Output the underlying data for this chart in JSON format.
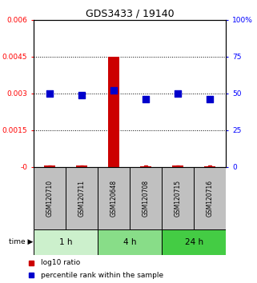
{
  "title": "GDS3433 / 19140",
  "samples": [
    "GSM120710",
    "GSM120711",
    "GSM120648",
    "GSM120708",
    "GSM120715",
    "GSM120716"
  ],
  "log10_ratio": [
    5e-05,
    7e-05,
    0.0045,
    4e-05,
    5e-05,
    4e-05
  ],
  "percentile_rank": [
    50,
    49,
    52,
    46,
    50,
    46
  ],
  "left_ylim": [
    0,
    0.006
  ],
  "right_ylim": [
    0,
    100
  ],
  "left_yticks": [
    0,
    0.0015,
    0.003,
    0.0045,
    0.006
  ],
  "left_yticklabels": [
    "-0",
    "0.0015",
    "0.003",
    "0.0045",
    "0.006"
  ],
  "right_yticks": [
    0,
    25,
    50,
    75,
    100
  ],
  "right_yticklabels": [
    "0",
    "25",
    "50",
    "75",
    "100%"
  ],
  "time_groups": [
    {
      "label": "1 h",
      "samples": [
        0,
        1
      ],
      "color": "#ccf0cc"
    },
    {
      "label": "4 h",
      "samples": [
        2,
        3
      ],
      "color": "#88dd88"
    },
    {
      "label": "24 h",
      "samples": [
        4,
        5
      ],
      "color": "#44cc44"
    }
  ],
  "bar_color": "#cc0000",
  "dot_color": "#0000cc",
  "sample_box_color": "#c0c0c0",
  "sample_box_border": "#000000",
  "legend_red_label": "log10 ratio",
  "legend_blue_label": "percentile rank within the sample",
  "bar_width": 0.35,
  "dot_size": 30
}
